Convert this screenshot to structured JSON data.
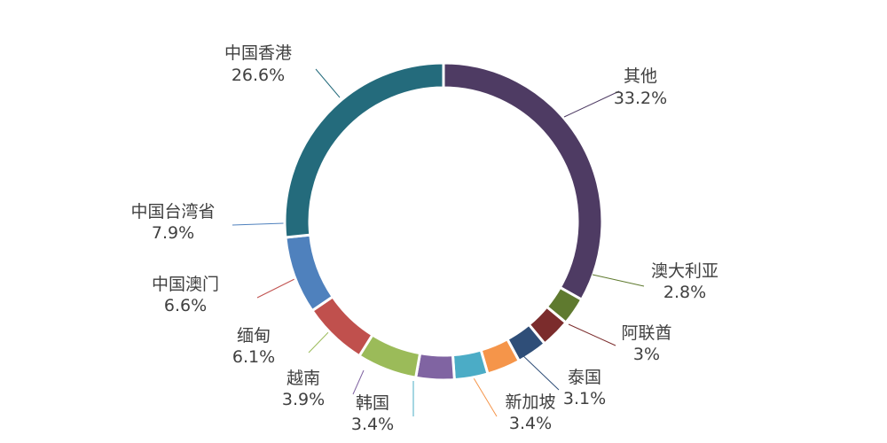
{
  "chart_data": {
    "type": "pie",
    "donut": true,
    "title": "",
    "legend": "none",
    "categories": [
      "其他",
      "澳大利亚",
      "阿联酋",
      "泰国",
      "新加坡",
      "韩国",
      "越南",
      "缅甸",
      "中国澳门",
      "中国台湾省",
      "中国香港"
    ],
    "values": [
      33.2,
      2.8,
      3,
      3.1,
      3.4,
      3.4,
      3.9,
      6.1,
      6.6,
      7.9,
      26.6
    ],
    "value_labels": [
      "33.2%",
      "2.8%",
      "3%",
      "3.1%",
      "3.4%",
      "3.4%",
      "3.9%",
      "6.1%",
      "6.6%",
      "7.9%",
      "26.6%"
    ],
    "colors": [
      "#4e3b63",
      "#5f7a2f",
      "#7b2c2c",
      "#2f4e78",
      "#f5954a",
      "#4bacc6",
      "#8064a2",
      "#9bbb59",
      "#c0504d",
      "#4f81bd",
      "#246b7c"
    ]
  }
}
